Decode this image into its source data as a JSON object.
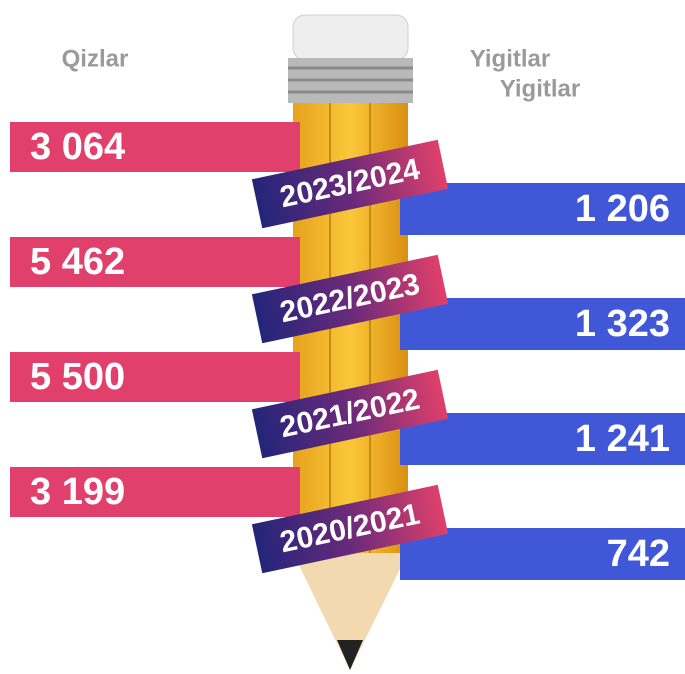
{
  "labels": {
    "left": "Qizlar",
    "right": [
      "Yigitlar",
      "Yigitlar"
    ]
  },
  "rows": [
    {
      "year": "2023/2024",
      "girls": "3 064",
      "boys": "1 206"
    },
    {
      "year": "2022/2023",
      "girls": "5 462",
      "boys": "1 323"
    },
    {
      "year": "2021/2022",
      "girls": "5 500",
      "boys": "1 241"
    },
    {
      "year": "2020/2021",
      "girls": "3 199",
      "boys": "742"
    }
  ]
}
